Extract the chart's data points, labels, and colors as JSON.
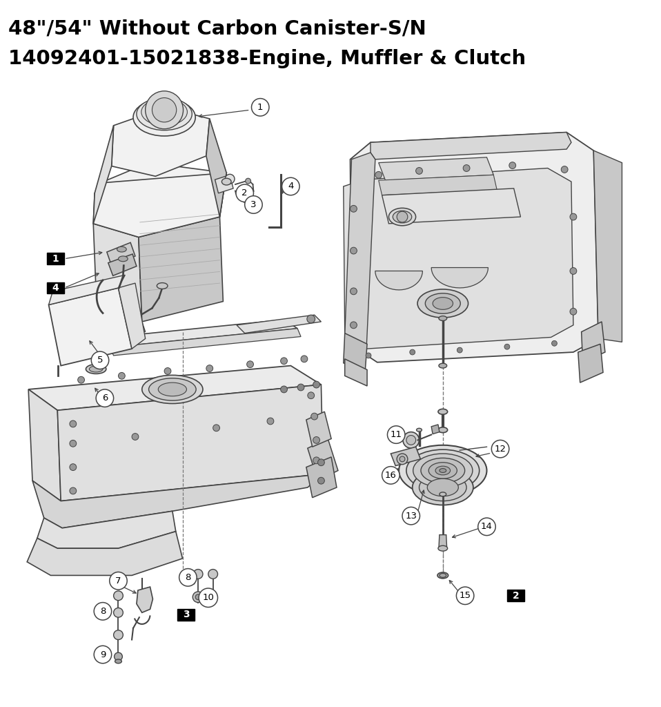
{
  "title_line1": "48\"/54\" Without Carbon Canister-S/N",
  "title_line2": "14092401-15021838-Engine, Muffler & Clutch",
  "title_fontsize": 21,
  "title_fontweight": "bold",
  "title_color": "#000000",
  "background_color": "#ffffff",
  "lc": "#444444",
  "figsize": [
    9.58,
    10.24
  ],
  "dpi": 100
}
